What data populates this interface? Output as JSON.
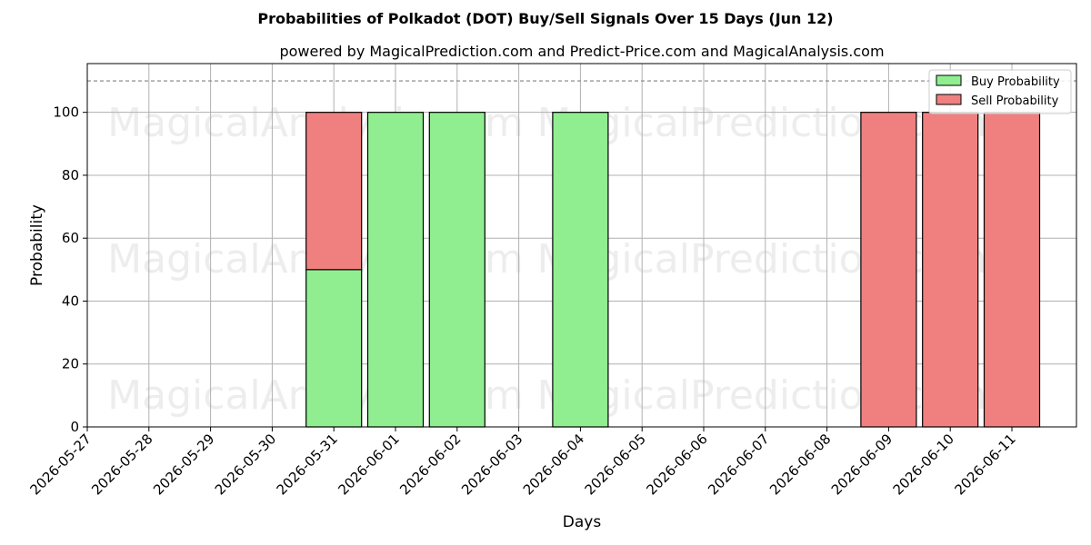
{
  "chart_data": {
    "type": "bar",
    "stacked": true,
    "title": "Probabilities of Polkadot (DOT) Buy/Sell Signals Over 15 Days (Jun 12)",
    "subtitle": "powered by MagicalPrediction.com and Predict-Price.com and MagicalAnalysis.com",
    "xlabel": "Days",
    "ylabel": "Probability",
    "ylim": [
      0,
      115.5
    ],
    "yticks": [
      0,
      20,
      40,
      60,
      80,
      100
    ],
    "x_ticks": [
      "2026-05-27",
      "2026-05-28",
      "2026-05-29",
      "2026-05-30",
      "2026-05-31",
      "2026-06-01",
      "2026-06-02",
      "2026-06-03",
      "2026-06-04",
      "2026-06-05",
      "2026-06-06",
      "2026-06-07",
      "2026-06-08",
      "2026-06-09",
      "2026-06-10",
      "2026-06-11"
    ],
    "categories": [
      "2026-05-31",
      "2026-06-01",
      "2026-06-02",
      "2026-06-04",
      "2026-06-09",
      "2026-06-10",
      "2026-06-11"
    ],
    "series": [
      {
        "name": "Buy Probability",
        "color": "#90ee90",
        "values": [
          50,
          100,
          100,
          100,
          0,
          0,
          0
        ]
      },
      {
        "name": "Sell Probability",
        "color": "#f08080",
        "values": [
          50,
          0,
          0,
          0,
          100,
          100,
          100
        ]
      }
    ],
    "reference_line": {
      "y": 110,
      "style": "dashed",
      "color": "#808080"
    },
    "grid": true,
    "legend": "top-right",
    "watermarks": [
      "MagicalAnalysis.com",
      "MagicalPrediction.com"
    ]
  }
}
